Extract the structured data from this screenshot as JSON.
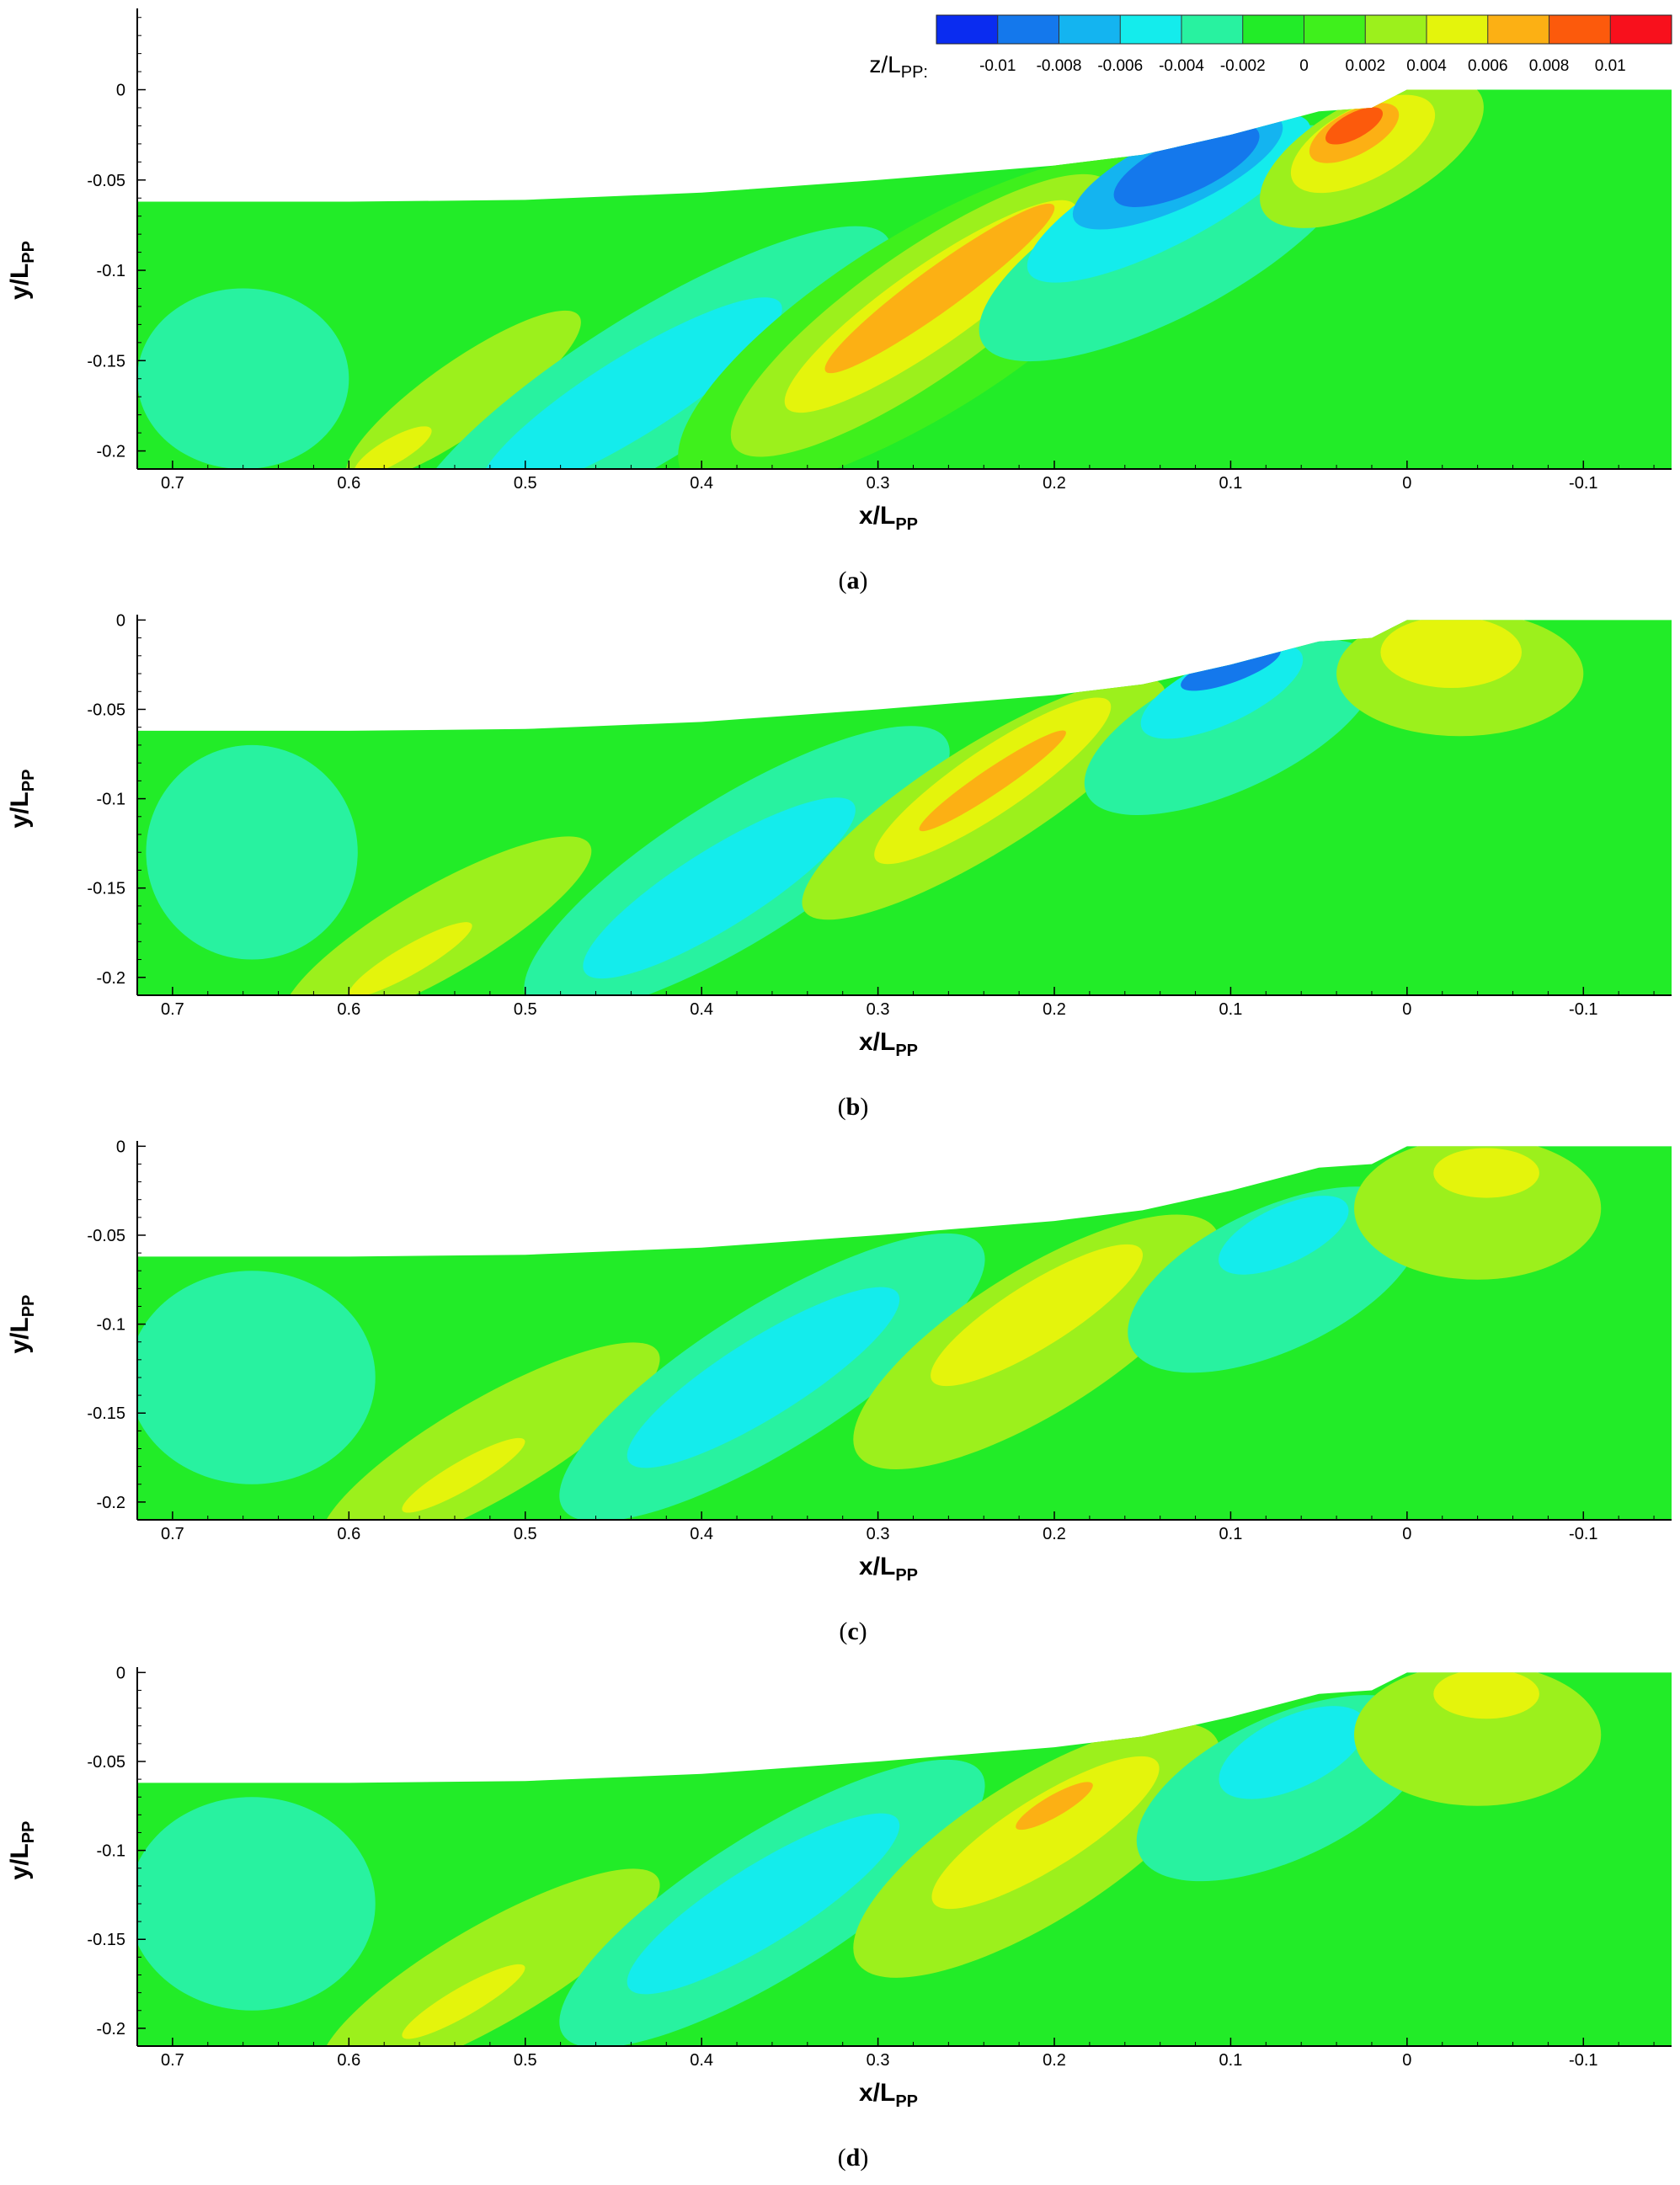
{
  "figure": {
    "colorbar": {
      "label_main": "z/L",
      "label_sub": "PP:",
      "colors": [
        "#0a2cf0",
        "#1478ec",
        "#14b4f0",
        "#14ecec",
        "#28f2a0",
        "#22ec28",
        "#3ff01c",
        "#9cf01c",
        "#e4f40c",
        "#fcb014",
        "#fc5a0c",
        "#f8101c"
      ],
      "ticks": [
        "-0.01",
        "-0.008",
        "-0.006",
        "-0.004",
        "-0.002",
        "0",
        "0.002",
        "0.004",
        "0.006",
        "0.008",
        "0.01"
      ]
    },
    "color_map": {
      "background": "#22ec28",
      "light_green": "#3ff01c",
      "lime": "#9cf01c",
      "yellow": "#e4f40c",
      "orange": "#fcb014",
      "red_orange": "#fc5a0c",
      "red": "#f8101c",
      "mint": "#28f2a0",
      "cyan": "#14ecec",
      "sky": "#14b4f0",
      "blue": "#1478ec",
      "deep_blue": "#0a2cf0"
    }
  },
  "chart_data": [
    {
      "type": "heatmap",
      "panel": "(a)",
      "caption_letter": "a",
      "xlabel_main": "x/L",
      "xlabel_sub": "PP",
      "ylabel_main": "y/L",
      "ylabel_sub": "PP",
      "xlim": [
        0.72,
        -0.15
      ],
      "ylim": [
        -0.21,
        0.045
      ],
      "x_ticks": [
        "0.7",
        "0.6",
        "0.5",
        "0.4",
        "0.3",
        "0.2",
        "0.1",
        "0",
        "-0.1"
      ],
      "y_ticks": [
        "0",
        "-0.05",
        "-0.1",
        "-0.15",
        "-0.2"
      ],
      "colorbar_shown": true,
      "contours": [
        {
          "level": "lime",
          "x": 0.535,
          "y": -0.17,
          "rx": 0.08,
          "ry": 0.02,
          "angle": 35
        },
        {
          "level": "yellow",
          "x": 0.575,
          "y": -0.2,
          "rx": 0.025,
          "ry": 0.007,
          "angle": 30
        },
        {
          "level": "mint",
          "x": 0.43,
          "y": -0.165,
          "rx": 0.16,
          "ry": 0.04,
          "angle": 32
        },
        {
          "level": "cyan",
          "x": 0.44,
          "y": -0.17,
          "rx": 0.1,
          "ry": 0.022,
          "angle": 32
        },
        {
          "level": "light_green",
          "x": 0.275,
          "y": -0.13,
          "rx": 0.16,
          "ry": 0.05,
          "angle": 32
        },
        {
          "level": "lime",
          "x": 0.275,
          "y": -0.125,
          "rx": 0.13,
          "ry": 0.035,
          "angle": 35
        },
        {
          "level": "yellow",
          "x": 0.27,
          "y": -0.12,
          "rx": 0.1,
          "ry": 0.022,
          "angle": 35
        },
        {
          "level": "orange",
          "x": 0.265,
          "y": -0.11,
          "rx": 0.08,
          "ry": 0.012,
          "angle": 36
        },
        {
          "level": "mint",
          "x": 0.135,
          "y": -0.085,
          "rx": 0.12,
          "ry": 0.04,
          "angle": 28
        },
        {
          "level": "cyan",
          "x": 0.135,
          "y": -0.06,
          "rx": 0.09,
          "ry": 0.025,
          "angle": 28
        },
        {
          "level": "sky",
          "x": 0.13,
          "y": -0.045,
          "rx": 0.065,
          "ry": 0.02,
          "angle": 25
        },
        {
          "level": "blue",
          "x": 0.125,
          "y": -0.042,
          "rx": 0.045,
          "ry": 0.015,
          "angle": 25
        },
        {
          "level": "lime",
          "x": 0.02,
          "y": -0.035,
          "rx": 0.07,
          "ry": 0.03,
          "angle": 28
        },
        {
          "level": "yellow",
          "x": 0.025,
          "y": -0.03,
          "rx": 0.045,
          "ry": 0.02,
          "angle": 28
        },
        {
          "level": "orange",
          "x": 0.03,
          "y": -0.024,
          "rx": 0.028,
          "ry": 0.012,
          "angle": 28
        },
        {
          "level": "red_orange",
          "x": 0.03,
          "y": -0.02,
          "rx": 0.018,
          "ry": 0.007,
          "angle": 28
        },
        {
          "level": "mint",
          "x": 0.66,
          "y": -0.16,
          "rx": 0.06,
          "ry": 0.05,
          "angle": 0
        }
      ]
    },
    {
      "type": "heatmap",
      "panel": "(b)",
      "caption_letter": "b",
      "xlabel_main": "x/L",
      "xlabel_sub": "PP",
      "ylabel_main": "y/L",
      "ylabel_sub": "PP",
      "xlim": [
        0.72,
        -0.15
      ],
      "ylim": [
        -0.21,
        0.003
      ],
      "x_ticks": [
        "0.7",
        "0.6",
        "0.5",
        "0.4",
        "0.3",
        "0.2",
        "0.1",
        "0",
        "-0.1"
      ],
      "y_ticks": [
        "0",
        "-0.05",
        "-0.1",
        "-0.15",
        "-0.2"
      ],
      "colorbar_shown": false,
      "contours": [
        {
          "level": "mint",
          "x": 0.655,
          "y": -0.13,
          "rx": 0.06,
          "ry": 0.06,
          "angle": 0
        },
        {
          "level": "lime",
          "x": 0.55,
          "y": -0.175,
          "rx": 0.1,
          "ry": 0.025,
          "angle": 30
        },
        {
          "level": "yellow",
          "x": 0.565,
          "y": -0.19,
          "rx": 0.04,
          "ry": 0.008,
          "angle": 30
        },
        {
          "level": "mint",
          "x": 0.38,
          "y": -0.14,
          "rx": 0.14,
          "ry": 0.04,
          "angle": 32
        },
        {
          "level": "cyan",
          "x": 0.39,
          "y": -0.15,
          "rx": 0.09,
          "ry": 0.022,
          "angle": 32
        },
        {
          "level": "lime",
          "x": 0.24,
          "y": -0.1,
          "rx": 0.12,
          "ry": 0.03,
          "angle": 32
        },
        {
          "level": "yellow",
          "x": 0.235,
          "y": -0.09,
          "rx": 0.08,
          "ry": 0.018,
          "angle": 34
        },
        {
          "level": "orange",
          "x": 0.235,
          "y": -0.09,
          "rx": 0.05,
          "ry": 0.007,
          "angle": 34
        },
        {
          "level": "mint",
          "x": 0.1,
          "y": -0.06,
          "rx": 0.09,
          "ry": 0.035,
          "angle": 25
        },
        {
          "level": "cyan",
          "x": 0.105,
          "y": -0.04,
          "rx": 0.05,
          "ry": 0.018,
          "angle": 25
        },
        {
          "level": "blue",
          "x": 0.1,
          "y": -0.027,
          "rx": 0.03,
          "ry": 0.008,
          "angle": 20
        },
        {
          "level": "lime",
          "x": -0.03,
          "y": -0.03,
          "rx": 0.07,
          "ry": 0.035,
          "angle": 0
        },
        {
          "level": "yellow",
          "x": -0.025,
          "y": -0.018,
          "rx": 0.04,
          "ry": 0.02,
          "angle": 0
        }
      ]
    },
    {
      "type": "heatmap",
      "panel": "(c)",
      "caption_letter": "c",
      "xlabel_main": "x/L",
      "xlabel_sub": "PP",
      "ylabel_main": "y/L",
      "ylabel_sub": "PP",
      "xlim": [
        0.72,
        -0.15
      ],
      "ylim": [
        -0.21,
        0.003
      ],
      "x_ticks": [
        "0.7",
        "0.6",
        "0.5",
        "0.4",
        "0.3",
        "0.2",
        "0.1",
        "0",
        "-0.1"
      ],
      "y_ticks": [
        "0",
        "-0.05",
        "-0.1",
        "-0.15",
        "-0.2"
      ],
      "colorbar_shown": false,
      "contours": [
        {
          "level": "mint",
          "x": 0.655,
          "y": -0.13,
          "rx": 0.07,
          "ry": 0.06,
          "angle": 0
        },
        {
          "level": "lime",
          "x": 0.52,
          "y": -0.17,
          "rx": 0.11,
          "ry": 0.028,
          "angle": 30
        },
        {
          "level": "yellow",
          "x": 0.535,
          "y": -0.185,
          "rx": 0.04,
          "ry": 0.008,
          "angle": 30
        },
        {
          "level": "mint",
          "x": 0.36,
          "y": -0.13,
          "rx": 0.14,
          "ry": 0.04,
          "angle": 32
        },
        {
          "level": "cyan",
          "x": 0.365,
          "y": -0.13,
          "rx": 0.09,
          "ry": 0.022,
          "angle": 32
        },
        {
          "level": "lime",
          "x": 0.21,
          "y": -0.11,
          "rx": 0.12,
          "ry": 0.04,
          "angle": 32
        },
        {
          "level": "yellow",
          "x": 0.21,
          "y": -0.095,
          "rx": 0.07,
          "ry": 0.018,
          "angle": 32
        },
        {
          "level": "mint",
          "x": 0.075,
          "y": -0.075,
          "rx": 0.09,
          "ry": 0.04,
          "angle": 25
        },
        {
          "level": "cyan",
          "x": 0.07,
          "y": -0.05,
          "rx": 0.04,
          "ry": 0.016,
          "angle": 25
        },
        {
          "level": "lime",
          "x": -0.04,
          "y": -0.035,
          "rx": 0.07,
          "ry": 0.04,
          "angle": 0
        },
        {
          "level": "yellow",
          "x": -0.045,
          "y": -0.015,
          "rx": 0.03,
          "ry": 0.014,
          "angle": 0
        }
      ]
    },
    {
      "type": "heatmap",
      "panel": "(d)",
      "caption_letter": "d",
      "xlabel_main": "x/L",
      "xlabel_sub": "PP",
      "ylabel_main": "y/L",
      "ylabel_sub": "PP",
      "xlim": [
        0.72,
        -0.15
      ],
      "ylim": [
        -0.21,
        0.003
      ],
      "x_ticks": [
        "0.7",
        "0.6",
        "0.5",
        "0.4",
        "0.3",
        "0.2",
        "0.1",
        "0",
        "-0.1"
      ],
      "y_ticks": [
        "0",
        "-0.05",
        "-0.1",
        "-0.15",
        "-0.2"
      ],
      "colorbar_shown": false,
      "contours": [
        {
          "level": "mint",
          "x": 0.655,
          "y": -0.13,
          "rx": 0.07,
          "ry": 0.06,
          "angle": 0
        },
        {
          "level": "lime",
          "x": 0.52,
          "y": -0.17,
          "rx": 0.11,
          "ry": 0.028,
          "angle": 30
        },
        {
          "level": "yellow",
          "x": 0.535,
          "y": -0.185,
          "rx": 0.04,
          "ry": 0.008,
          "angle": 30
        },
        {
          "level": "mint",
          "x": 0.36,
          "y": -0.13,
          "rx": 0.14,
          "ry": 0.04,
          "angle": 32
        },
        {
          "level": "cyan",
          "x": 0.365,
          "y": -0.13,
          "rx": 0.09,
          "ry": 0.022,
          "angle": 32
        },
        {
          "level": "lime",
          "x": 0.21,
          "y": -0.1,
          "rx": 0.12,
          "ry": 0.04,
          "angle": 32
        },
        {
          "level": "yellow",
          "x": 0.205,
          "y": -0.09,
          "rx": 0.075,
          "ry": 0.02,
          "angle": 32
        },
        {
          "level": "orange",
          "x": 0.2,
          "y": -0.075,
          "rx": 0.025,
          "ry": 0.006,
          "angle": 30
        },
        {
          "level": "mint",
          "x": 0.07,
          "y": -0.065,
          "rx": 0.09,
          "ry": 0.04,
          "angle": 25
        },
        {
          "level": "cyan",
          "x": 0.065,
          "y": -0.045,
          "rx": 0.045,
          "ry": 0.02,
          "angle": 25
        },
        {
          "level": "lime",
          "x": -0.04,
          "y": -0.035,
          "rx": 0.07,
          "ry": 0.04,
          "angle": 0
        },
        {
          "level": "yellow",
          "x": -0.045,
          "y": -0.012,
          "rx": 0.03,
          "ry": 0.014,
          "angle": 0
        }
      ]
    }
  ]
}
